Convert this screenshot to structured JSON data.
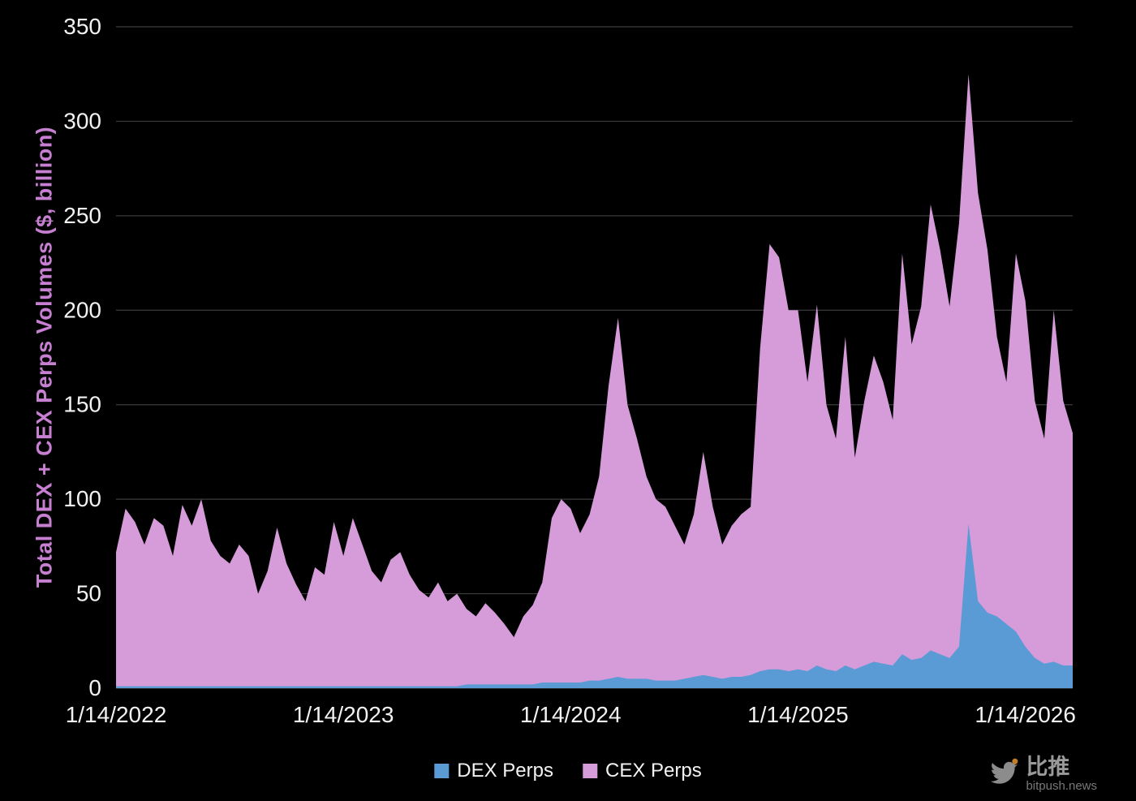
{
  "chart": {
    "y_axis_label": "Total DEX + CEX Perps Volumes ($, billion)",
    "y_ticks": [
      0,
      50,
      100,
      150,
      200,
      250,
      300,
      350
    ],
    "x_tick_labels": [
      "1/14/2022",
      "1/14/2023",
      "1/14/2024",
      "1/14/2025",
      "1/14/2026"
    ],
    "x_tick_months": [
      0,
      12,
      24,
      36,
      48
    ],
    "legend": [
      {
        "label": "DEX Perps",
        "color": "#5b9bd5"
      },
      {
        "label": "CEX Perps",
        "color": "#d69cda"
      }
    ],
    "colors": {
      "background": "#000000",
      "gridline": "#3c3c3c",
      "tick_text": "#f2f2f2",
      "axis_title": "#c77fd2"
    }
  },
  "chart_data": {
    "type": "area",
    "stacked": true,
    "x_unit": "months since 1/14/2022 (half-month sampling)",
    "x": [
      0,
      0.5,
      1,
      1.5,
      2,
      2.5,
      3,
      3.5,
      4,
      4.5,
      5,
      5.5,
      6,
      6.5,
      7,
      7.5,
      8,
      8.5,
      9,
      9.5,
      10,
      10.5,
      11,
      11.5,
      12,
      12.5,
      13,
      13.5,
      14,
      14.5,
      15,
      15.5,
      16,
      16.5,
      17,
      17.5,
      18,
      18.5,
      19,
      19.5,
      20,
      20.5,
      21,
      21.5,
      22,
      22.5,
      23,
      23.5,
      24,
      24.5,
      25,
      25.5,
      26,
      26.5,
      27,
      27.5,
      28,
      28.5,
      29,
      29.5,
      30,
      30.5,
      31,
      31.5,
      32,
      32.5,
      33,
      33.5,
      34,
      34.5,
      35,
      35.5,
      36,
      36.5,
      37,
      37.5,
      38,
      38.5,
      39,
      39.5,
      40,
      40.5,
      41,
      41.5,
      42,
      42.5,
      43,
      43.5,
      44,
      44.5,
      45,
      45.5,
      46,
      46.5,
      47,
      47.5,
      48,
      48.5,
      49,
      49.5,
      50,
      50.5
    ],
    "series": [
      {
        "name": "DEX Perps",
        "color": "#5b9bd5",
        "values": [
          1,
          1,
          1,
          1,
          1,
          1,
          1,
          1,
          1,
          1,
          1,
          1,
          1,
          1,
          1,
          1,
          1,
          1,
          1,
          1,
          1,
          1,
          1,
          1,
          1,
          1,
          1,
          1,
          1,
          1,
          1,
          1,
          1,
          1,
          1,
          1,
          1,
          2,
          2,
          2,
          2,
          2,
          2,
          2,
          2,
          3,
          3,
          3,
          3,
          3,
          4,
          4,
          5,
          6,
          5,
          5,
          5,
          4,
          4,
          4,
          5,
          6,
          7,
          6,
          5,
          6,
          6,
          7,
          9,
          10,
          10,
          9,
          10,
          9,
          12,
          10,
          9,
          12,
          10,
          12,
          14,
          13,
          12,
          18,
          15,
          16,
          20,
          18,
          16,
          22,
          87,
          46,
          40,
          38,
          34,
          30,
          22,
          16,
          13,
          14,
          12,
          12
        ]
      },
      {
        "name": "CEX Perps",
        "color": "#d69cda",
        "values": [
          71,
          94,
          87,
          75,
          89,
          85,
          69,
          96,
          85,
          99,
          77,
          69,
          65,
          75,
          69,
          49,
          61,
          84,
          65,
          54,
          45,
          63,
          59,
          87,
          69,
          89,
          75,
          61,
          55,
          67,
          71,
          59,
          51,
          47,
          55,
          45,
          49,
          40,
          36,
          43,
          38,
          32,
          25,
          36,
          42,
          53,
          87,
          97,
          92,
          79,
          88,
          108,
          155,
          190,
          145,
          127,
          107,
          96,
          92,
          82,
          71,
          86,
          118,
          90,
          71,
          80,
          86,
          89,
          171,
          225,
          218,
          191,
          190,
          153,
          191,
          140,
          123,
          174,
          112,
          140,
          162,
          149,
          130,
          212,
          167,
          186,
          236,
          214,
          186,
          224,
          238,
          216,
          192,
          148,
          128,
          200,
          183,
          136,
          119,
          186,
          140,
          123
        ]
      }
    ],
    "ylim": [
      0,
      350
    ],
    "grid": true,
    "legend_position": "bottom",
    "xlabel": "",
    "ylabel": "Total DEX + CEX Perps Volumes ($, billion)"
  },
  "watermark": {
    "brand": "比推",
    "domain": "bitpush.news"
  }
}
